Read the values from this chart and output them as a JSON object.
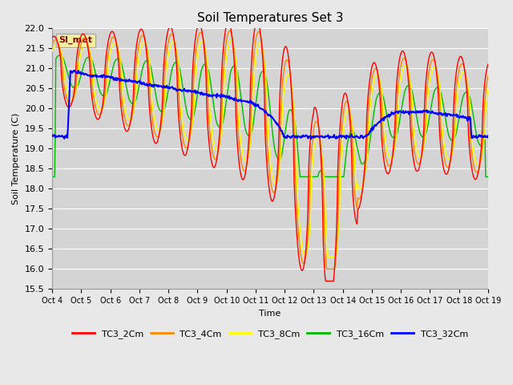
{
  "title": "Soil Temperatures Set 3",
  "xlabel": "Time",
  "ylabel": "Soil Temperature (C)",
  "ylim": [
    15.5,
    22.0
  ],
  "yticks": [
    15.5,
    16.0,
    16.5,
    17.0,
    17.5,
    18.0,
    18.5,
    19.0,
    19.5,
    20.0,
    20.5,
    21.0,
    21.5,
    22.0
  ],
  "x_labels": [
    "Oct 4",
    "Oct 5",
    "Oct 6",
    "Oct 7",
    "Oct 8",
    "Oct 9",
    "Oct 10",
    "Oct 11",
    "Oct 12",
    "Oct 13",
    "Oct 14",
    "Oct 15",
    "Oct 16",
    "Oct 17",
    "Oct 18",
    "Oct 19"
  ],
  "series_colors": [
    "#ff0000",
    "#ff8800",
    "#ffff00",
    "#00bb00",
    "#0000ff"
  ],
  "series_names": [
    "TC3_2Cm",
    "TC3_4Cm",
    "TC3_8Cm",
    "TC3_16Cm",
    "TC3_32Cm"
  ],
  "legend_label": "SI_met",
  "fig_bg": "#e8e8e8",
  "plot_bg": "#d4d4d4",
  "grid_color": "#ffffff",
  "title_fontsize": 11,
  "label_fontsize": 8,
  "tick_fontsize": 8
}
